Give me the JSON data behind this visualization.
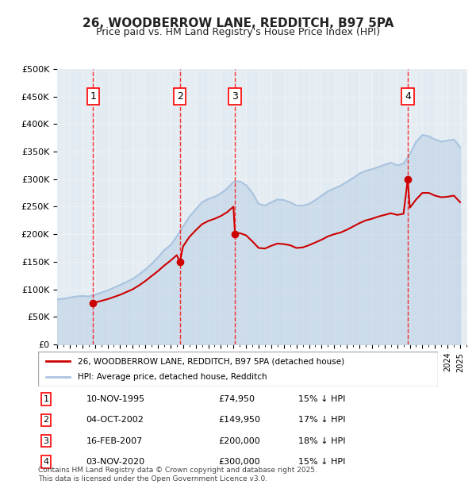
{
  "title": "26, WOODBERROW LANE, REDDITCH, B97 5PA",
  "subtitle": "Price paid vs. HM Land Registry's House Price Index (HPI)",
  "ylim": [
    0,
    500000
  ],
  "yticks": [
    0,
    50000,
    100000,
    150000,
    200000,
    250000,
    300000,
    350000,
    400000,
    450000,
    500000
  ],
  "ytick_labels": [
    "£0",
    "£50K",
    "£100K",
    "£150K",
    "£200K",
    "£250K",
    "£300K",
    "£350K",
    "£400K",
    "£450K",
    "£500K"
  ],
  "xlim_start": 1993.0,
  "xlim_end": 2025.5,
  "hpi_color": "#aac4e0",
  "price_color": "#cc0000",
  "background_color": "#ffffff",
  "grid_color": "#d0d0d0",
  "hatch_color": "#e8eef5",
  "sale_points": [
    {
      "year": 1995.86,
      "price": 74950,
      "label": "1"
    },
    {
      "year": 2002.75,
      "price": 149950,
      "label": "2"
    },
    {
      "year": 2007.12,
      "price": 200000,
      "label": "3"
    },
    {
      "year": 2020.84,
      "price": 300000,
      "label": "4"
    }
  ],
  "sale_vlines": [
    1995.86,
    2002.75,
    2007.12,
    2020.84
  ],
  "legend_entries": [
    "26, WOODBERROW LANE, REDDITCH, B97 5PA (detached house)",
    "HPI: Average price, detached house, Redditch"
  ],
  "table_rows": [
    {
      "num": "1",
      "date": "10-NOV-1995",
      "price": "£74,950",
      "note": "15% ↓ HPI"
    },
    {
      "num": "2",
      "date": "04-OCT-2002",
      "price": "£149,950",
      "note": "17% ↓ HPI"
    },
    {
      "num": "3",
      "date": "16-FEB-2007",
      "price": "£200,000",
      "note": "18% ↓ HPI"
    },
    {
      "num": "4",
      "date": "03-NOV-2020",
      "price": "£300,000",
      "note": "15% ↓ HPI"
    }
  ],
  "footer": "Contains HM Land Registry data © Crown copyright and database right 2025.\nThis data is licensed under the Open Government Licence v3.0.",
  "hpi_data_x": [
    1993.0,
    1993.5,
    1994.0,
    1994.5,
    1995.0,
    1995.5,
    1996.0,
    1996.5,
    1997.0,
    1997.5,
    1998.0,
    1998.5,
    1999.0,
    1999.5,
    2000.0,
    2000.5,
    2001.0,
    2001.5,
    2002.0,
    2002.5,
    2003.0,
    2003.5,
    2004.0,
    2004.5,
    2005.0,
    2005.5,
    2006.0,
    2006.5,
    2007.0,
    2007.5,
    2008.0,
    2008.5,
    2009.0,
    2009.5,
    2010.0,
    2010.5,
    2011.0,
    2011.5,
    2012.0,
    2012.5,
    2013.0,
    2013.5,
    2014.0,
    2014.5,
    2015.0,
    2015.5,
    2016.0,
    2016.5,
    2017.0,
    2017.5,
    2018.0,
    2018.5,
    2019.0,
    2019.5,
    2020.0,
    2020.5,
    2021.0,
    2021.5,
    2022.0,
    2022.5,
    2023.0,
    2023.5,
    2024.0,
    2024.5,
    2025.0
  ],
  "hpi_data_y": [
    82000,
    83000,
    85000,
    87000,
    88000,
    87000,
    90000,
    94000,
    98000,
    103000,
    108000,
    113000,
    119000,
    127000,
    136000,
    146000,
    158000,
    171000,
    180000,
    196000,
    214000,
    232000,
    245000,
    258000,
    264000,
    268000,
    274000,
    283000,
    295000,
    296000,
    289000,
    275000,
    255000,
    252000,
    258000,
    263000,
    262000,
    258000,
    252000,
    252000,
    255000,
    262000,
    270000,
    278000,
    283000,
    288000,
    295000,
    302000,
    310000,
    315000,
    318000,
    322000,
    326000,
    330000,
    325000,
    328000,
    345000,
    368000,
    380000,
    378000,
    372000,
    368000,
    370000,
    372000,
    358000
  ],
  "price_data_x": [
    1995.86,
    1996.0,
    1996.5,
    1997.0,
    1997.5,
    1998.0,
    1998.5,
    1999.0,
    1999.5,
    2000.0,
    2000.5,
    2001.0,
    2001.5,
    2002.0,
    2002.5,
    2002.75,
    2003.0,
    2003.5,
    2004.0,
    2004.5,
    2005.0,
    2005.5,
    2006.0,
    2006.5,
    2007.0,
    2007.12,
    2007.5,
    2008.0,
    2008.5,
    2009.0,
    2009.5,
    2010.0,
    2010.5,
    2011.0,
    2011.5,
    2012.0,
    2012.5,
    2013.0,
    2013.5,
    2014.0,
    2014.5,
    2015.0,
    2015.5,
    2016.0,
    2016.5,
    2017.0,
    2017.5,
    2018.0,
    2018.5,
    2019.0,
    2019.5,
    2020.0,
    2020.5,
    2020.84,
    2021.0,
    2021.5,
    2022.0,
    2022.5,
    2023.0,
    2023.5,
    2024.0,
    2024.5,
    2025.0
  ],
  "price_data_y": [
    74950,
    76000,
    79000,
    82000,
    86000,
    90000,
    95000,
    100000,
    107000,
    115000,
    124000,
    133000,
    143000,
    152000,
    162000,
    149950,
    178000,
    195000,
    207000,
    218000,
    224000,
    228000,
    233000,
    240000,
    250000,
    200000,
    202000,
    198000,
    187000,
    175000,
    174000,
    179000,
    183000,
    182000,
    180000,
    175000,
    176000,
    180000,
    185000,
    190000,
    196000,
    200000,
    203000,
    208000,
    214000,
    220000,
    225000,
    228000,
    232000,
    235000,
    238000,
    235000,
    237000,
    300000,
    248000,
    263000,
    275000,
    275000,
    270000,
    267000,
    268000,
    270000,
    258000
  ]
}
